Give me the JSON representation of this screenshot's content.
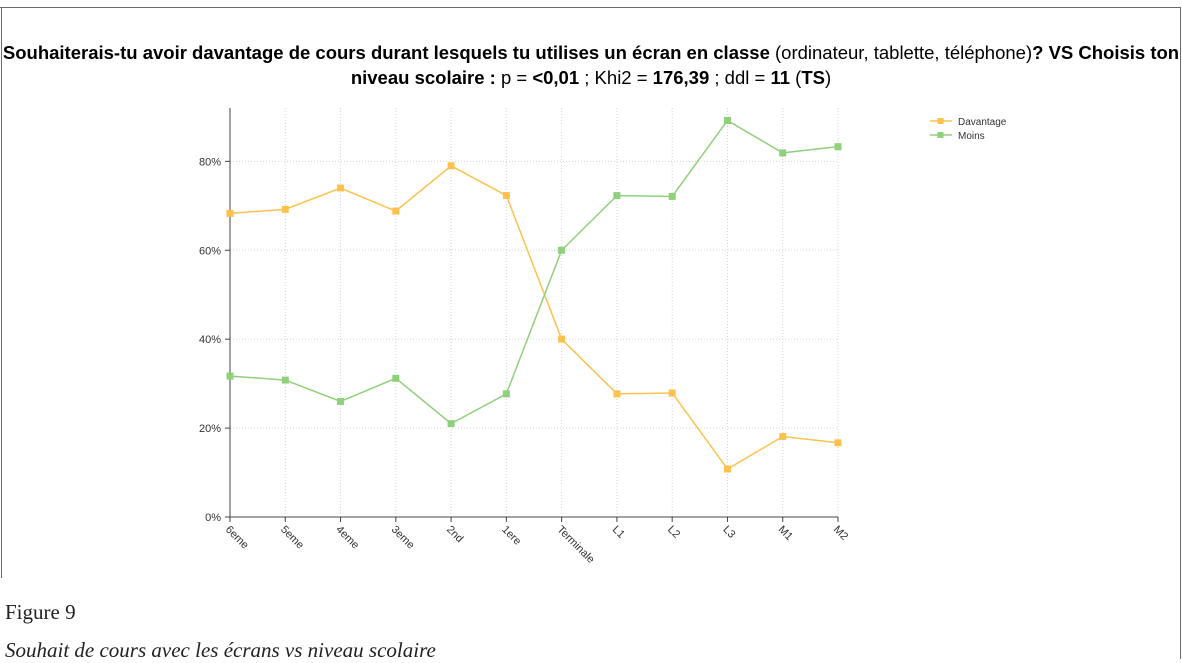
{
  "chart_data": {
    "type": "line",
    "title": {
      "part1_bold": "Souhaiterais-tu avoir davantage de cours durant lesquels tu utilises un écran en classe",
      "part2": " (ordinateur, tablette, téléphone)",
      "part3_bold": "? VS Choisis ton niveau scolaire :",
      "part4": " p = ",
      "p_value": "<0,01",
      "part5": " ; Khi2 = ",
      "khi2": "176,39",
      "part6": " ; ddl = ",
      "ddl": "11",
      "part7": " (",
      "ts": "TS",
      "part8": ")"
    },
    "categories": [
      "6eme",
      "5eme",
      "4eme",
      "3eme",
      "2nd",
      "1ere",
      "Terminale",
      "L1",
      "L2",
      "L3",
      "M1",
      "M2"
    ],
    "series": [
      {
        "name": "Davantage",
        "color": "#fdc24e",
        "values": [
          68.3,
          69.2,
          74.0,
          68.8,
          79.0,
          72.3,
          40.0,
          27.7,
          27.9,
          10.8,
          18.1,
          16.7
        ]
      },
      {
        "name": "Moins",
        "color": "#8fd07a",
        "values": [
          31.7,
          30.8,
          26.0,
          31.2,
          21.0,
          27.7,
          60.0,
          72.3,
          72.1,
          89.2,
          81.9,
          83.3
        ]
      }
    ],
    "y_ticks": [
      "0%",
      "20%",
      "40%",
      "60%",
      "80%"
    ],
    "ylim": [
      0,
      92
    ],
    "grid": true,
    "legend_position": "top-right"
  },
  "caption": {
    "label": "Figure 9",
    "text": "Souhait de cours avec les écrans vs niveau scolaire"
  }
}
